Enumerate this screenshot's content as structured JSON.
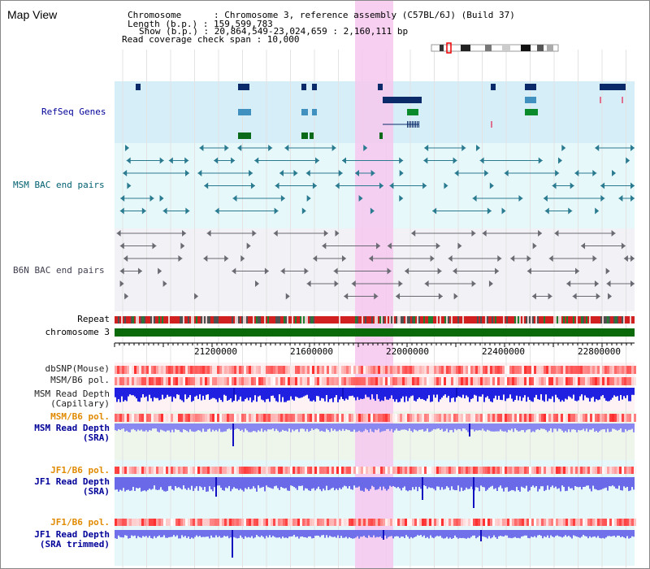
{
  "view": {
    "title": "Map View"
  },
  "info": {
    "chromosome": "Chromosome      : Chromosome 3, reference assembly (C57BL/6J) (Build 37)",
    "length": "Length (b.p.) : 159,599,783",
    "show": "Show (b.p.) : 20,864,549-23,024,659 : 2,160,111 bp",
    "coverage": "Read coverage check span : 10,000"
  },
  "tracks": {
    "refseq": "RefSeq Genes",
    "msm_bac": "MSM BAC end pairs",
    "b6n_bac": "B6N BAC end pairs",
    "repeat": "Repeat",
    "chromosome": "chromosome 3",
    "dbsnp": "dbSNP(Mouse)",
    "msm_b6_pol_1": "MSM/B6 pol.",
    "msm_depth_cap_1": "MSM Read Depth",
    "msm_depth_cap_2": "(Capillary)",
    "msm_b6_pol_2": "MSM/B6 pol.",
    "msm_depth_sra_1": "MSM Read Depth",
    "msm_depth_sra_2": "(SRA)",
    "jf1_b6_pol_1": "JF1/B6 pol.",
    "jf1_depth_sra_1": "JF1 Read Depth",
    "jf1_depth_sra_2": "(SRA)",
    "jf1_b6_pol_2": "JF1/B6 pol.",
    "jf1_depth_trim_1": "JF1 Read Depth",
    "jf1_depth_trim_2": "(SRA trimmed)"
  },
  "axis": {
    "ticks": [
      "21200000",
      "21600000",
      "22000000",
      "22400000",
      "22800000"
    ]
  },
  "colors": {
    "refseq_label": "#000099",
    "msm_bac_label": "#006070",
    "b6n_bac_label": "#404050",
    "pol_orange": "#e08a00",
    "depth_blue": "#000099",
    "highlight": "#f6c8ee"
  }
}
